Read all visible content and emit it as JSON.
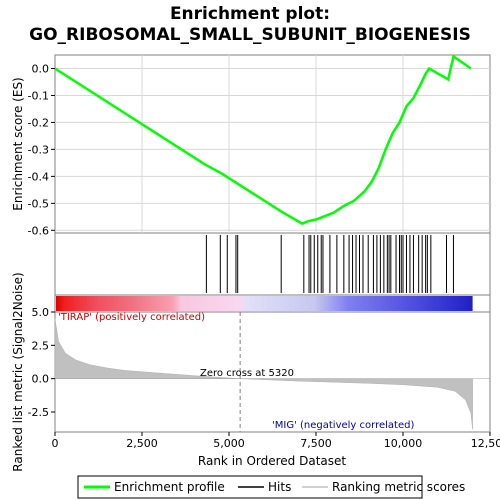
{
  "chart_data": {
    "type": "line",
    "title_line1": "Enrichment plot:",
    "title_line2": "GO_RIBOSOMAL_SMALL_SUBUNIT_BIOGENESIS",
    "top_panel": {
      "ylabel": "Enrichment score (ES)",
      "ylim": [
        -0.61,
        0.05
      ],
      "yticks": [
        0.0,
        -0.1,
        -0.2,
        -0.3,
        -0.4,
        -0.5,
        -0.6
      ],
      "ytick_labels": [
        "0.0",
        "-0.1",
        "-0.2",
        "-0.3",
        "-0.4",
        "-0.5",
        "-0.6"
      ],
      "grid": true,
      "series": [
        {
          "name": "Enrichment profile",
          "color": "#00ff00",
          "x": [
            0,
            4300,
            4800,
            6500,
            7100,
            7300,
            7500,
            7700,
            8000,
            8300,
            8600,
            8900,
            9100,
            9300,
            9500,
            9700,
            9900,
            10100,
            10300,
            10500,
            10650,
            10750,
            11300,
            11450,
            11950
          ],
          "y": [
            0.0,
            -0.355,
            -0.39,
            -0.53,
            -0.575,
            -0.565,
            -0.56,
            -0.55,
            -0.535,
            -0.51,
            -0.49,
            -0.455,
            -0.42,
            -0.37,
            -0.3,
            -0.24,
            -0.2,
            -0.14,
            -0.11,
            -0.06,
            -0.02,
            0.0,
            -0.04,
            0.045,
            0.0
          ]
        }
      ]
    },
    "hits": [
      4350,
      4750,
      4950,
      5200,
      5250,
      6500,
      7150,
      7300,
      7350,
      7450,
      7550,
      7650,
      7700,
      7900,
      8100,
      8300,
      8450,
      8550,
      8650,
      8750,
      8850,
      9000,
      9150,
      9250,
      9350,
      9450,
      9550,
      9600,
      9650,
      9800,
      9900,
      9950,
      10000,
      10100,
      10200,
      10300,
      10450,
      10550,
      10650,
      10700,
      10800,
      11250,
      11450
    ],
    "ranked_panel": {
      "ylabel": "Ranked list metric (Signal2Noise)",
      "ylim": [
        -4.0,
        5.0
      ],
      "yticks": [
        5.0,
        2.5,
        0.0,
        -2.5
      ],
      "ytick_labels": [
        "5.0",
        "2.5",
        "0.0",
        "-2.5"
      ],
      "metric_x": [
        0,
        100,
        300,
        600,
        1000,
        1500,
        2000,
        3000,
        4000,
        5320,
        7000,
        9000,
        10000,
        11000,
        11500,
        11800,
        11950,
        12000
      ],
      "metric_y": [
        4.5,
        2.8,
        1.9,
        1.4,
        1.05,
        0.8,
        0.62,
        0.42,
        0.22,
        0.0,
        -0.18,
        -0.35,
        -0.45,
        -0.65,
        -0.95,
        -1.6,
        -2.6,
        -3.8
      ],
      "zero_cross_x": 5320,
      "zero_cross_label": "Zero cross at 5320",
      "pos_label": "'TIRAP' (positively correlated)",
      "neg_label": "'MIG' (negatively correlated)"
    },
    "xlabel": "Rank in Ordered Dataset",
    "xlim": [
      0,
      12500
    ],
    "xticks": [
      0,
      2500,
      5000,
      7500,
      10000,
      12500
    ],
    "xtick_labels": [
      "0",
      "2,500",
      "5,000",
      "7,500",
      "10,000",
      "12,500"
    ],
    "colorbar_max_x": 12000,
    "legend": {
      "items": [
        "Enrichment profile",
        "Hits",
        "Ranking metric scores"
      ],
      "placement": "bottom"
    },
    "colors": {
      "profile": "#00ff00",
      "hits": "#000000",
      "metric": "#c0c0c0",
      "pos_label": "#cc0000",
      "neg_label": "#0000aa"
    }
  }
}
